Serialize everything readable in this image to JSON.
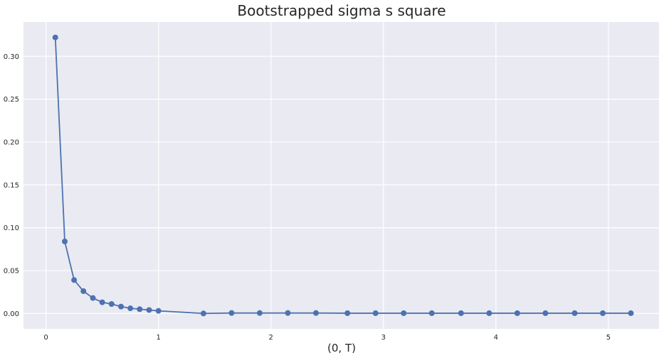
{
  "chart_data": {
    "type": "line",
    "title": "Bootstrapped sigma s square",
    "xlabel": "(0, T)",
    "ylabel": "",
    "xlim": [
      -0.2,
      5.45
    ],
    "ylim": [
      -0.018,
      0.34
    ],
    "xticks": [
      0,
      1,
      2,
      3,
      4,
      5
    ],
    "yticks": [
      0.0,
      0.05,
      0.1,
      0.15,
      0.2,
      0.25,
      0.3
    ],
    "xtick_labels": [
      "0",
      "1",
      "2",
      "3",
      "4",
      "5"
    ],
    "ytick_labels": [
      "0.00",
      "0.05",
      "0.10",
      "0.15",
      "0.20",
      "0.25",
      "0.30"
    ],
    "grid": true,
    "marker": "circle",
    "series": [
      {
        "name": "",
        "color": "#4c72b0",
        "x": [
          0.083,
          0.167,
          0.25,
          0.333,
          0.417,
          0.5,
          0.583,
          0.667,
          0.75,
          0.833,
          0.917,
          1.0,
          1.4,
          1.65,
          1.9,
          2.15,
          2.4,
          2.68,
          2.93,
          3.18,
          3.43,
          3.69,
          3.94,
          4.19,
          4.44,
          4.7,
          4.95,
          5.2
        ],
        "y": [
          0.322,
          0.084,
          0.039,
          0.026,
          0.018,
          0.013,
          0.011,
          0.008,
          0.006,
          0.005,
          0.004,
          0.003,
          0.0,
          0.0005,
          0.0005,
          0.0005,
          0.0005,
          0.0003,
          0.0003,
          0.0003,
          0.0003,
          0.0003,
          0.0003,
          0.0003,
          0.0003,
          0.0003,
          0.0003,
          0.0003
        ]
      }
    ]
  }
}
